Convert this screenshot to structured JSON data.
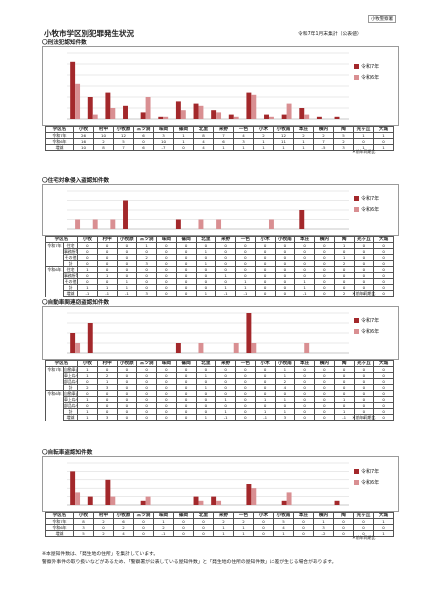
{
  "page": {
    "title": "小牧市学区別犯罪発生状況",
    "date": "令和7年1月末集計（公表値）",
    "badge": "小牧警察署",
    "source": "＊前年同期比",
    "footnotes": [
      "※本屋知件数は、「発生地の住所」を集計しています。",
      "警察外事件の取り扱いなどがあるため、「警察署が公表している屋知件数」と「発生地の住所の屋知件数」に差が生じる場合があります。"
    ]
  },
  "legend": {
    "r7": "令和7年",
    "r6": "令和6年",
    "c7": "#a3282b",
    "c6": "#d98f92"
  },
  "districts": [
    "小牧",
    "村中",
    "小牧原",
    "三ツ渕",
    "味岡",
    "篠岡",
    "北里",
    "米野",
    "一色",
    "小木",
    "小牧南",
    "本庄",
    "横内",
    "陶",
    "光ヶ丘",
    "大城"
  ],
  "sections": [
    {
      "title": "〇刑法犯認知件数",
      "chart_data": {
        "type": "bar",
        "categories": [
          "小牧",
          "村中",
          "小牧原",
          "三ツ渕",
          "味岡",
          "篠岡",
          "北里",
          "米野",
          "一色",
          "小木",
          "小牧南",
          "本庄",
          "横内",
          "陶",
          "光ヶ丘",
          "大城"
        ],
        "ylim": [
          0,
          30
        ],
        "series": [
          {
            "name": "令和7年",
            "values": [
              26,
              10,
              12,
              6,
              3,
              1,
              8,
              7,
              4,
              2,
              12,
              2,
              2,
              5,
              1,
              1
            ]
          },
          {
            "name": "令和6年",
            "values": [
              16,
              2,
              5,
              0,
              10,
              1,
              4,
              6,
              3,
              1,
              11,
              1,
              7,
              2,
              0,
              0
            ]
          }
        ]
      },
      "table": {
        "rows": [
          {
            "label": "学区名",
            "cells": [
              "小牧",
              "村中",
              "小牧原",
              "三ツ渕",
              "味岡",
              "篠岡",
              "北里",
              "米野",
              "一色",
              "小木",
              "小牧南",
              "本庄",
              "横内",
              "陶",
              "光ヶ丘",
              "大城"
            ],
            "header": true
          },
          {
            "label": "令和7年",
            "cells": [
              "26",
              "10",
              "12",
              "6",
              "3",
              "1",
              "8",
              "7",
              "4",
              "2",
              "12",
              "2",
              "2",
              "5",
              "1",
              "1"
            ]
          },
          {
            "label": "令和6年",
            "cells": [
              "16",
              "2",
              "5",
              "0",
              "10",
              "1",
              "4",
              "6",
              "3",
              "1",
              "11",
              "1",
              "7",
              "2",
              "0",
              "0"
            ]
          },
          {
            "label": "増減",
            "cells": [
              "10",
              "8",
              "7",
              "6",
              "-7",
              "0",
              "4",
              "1",
              "1",
              "1",
              "1",
              "1",
              "-5",
              "3",
              "1",
              "1"
            ]
          }
        ]
      }
    },
    {
      "title": "〇住宅対象侵入盗認知件数",
      "chart_data": {
        "type": "bar",
        "categories": [
          "小牧",
          "村中",
          "小牧原",
          "三ツ渕",
          "味岡",
          "篠岡",
          "北里",
          "米野",
          "一色",
          "小木",
          "小牧南",
          "本庄",
          "横内",
          "陶",
          "光ヶ丘",
          "大城"
        ],
        "ylim": [
          0,
          4
        ],
        "series": [
          {
            "name": "令和7年",
            "values": [
              0,
              0,
              0,
              3,
              0,
              0,
              1,
              0,
              0,
              0,
              0,
              0,
              0,
              2,
              0,
              0
            ]
          },
          {
            "name": "令和6年",
            "values": [
              1,
              1,
              1,
              0,
              0,
              0,
              0,
              1,
              1,
              0,
              0,
              1,
              0,
              0,
              0,
              0
            ]
          }
        ]
      },
      "table": {
        "rows": [
          {
            "label": "学区名",
            "cells": [
              "小牧",
              "村中",
              "小牧原",
              "三ツ渕",
              "味岡",
              "篠岡",
              "北里",
              "米野",
              "一色",
              "小木",
              "小牧南",
              "本庄",
              "横内",
              "陶",
              "光ヶ丘",
              "大城"
            ],
            "header": true
          },
          {
            "group": "令和7年",
            "label": "住宅",
            "cells": [
              "0",
              "0",
              "0",
              "1",
              "0",
              "0",
              "0",
              "0",
              "0",
              "0",
              "0",
              "0",
              "0",
              "1",
              "0",
              "0"
            ]
          },
          {
            "group": "",
            "label": "事務所等",
            "cells": [
              "0",
              "0",
              "0",
              "0",
              "0",
              "0",
              "1",
              "0",
              "0",
              "0",
              "0",
              "0",
              "0",
              "0",
              "0",
              "0"
            ]
          },
          {
            "group": "",
            "label": "その他",
            "cells": [
              "0",
              "0",
              "0",
              "2",
              "0",
              "0",
              "0",
              "0",
              "0",
              "0",
              "0",
              "0",
              "0",
              "1",
              "0",
              "0"
            ]
          },
          {
            "group": "",
            "label": "計",
            "cells": [
              "0",
              "0",
              "0",
              "3",
              "0",
              "0",
              "1",
              "0",
              "0",
              "0",
              "0",
              "0",
              "0",
              "2",
              "0",
              "0"
            ]
          },
          {
            "group": "令和6年",
            "label": "住宅",
            "cells": [
              "1",
              "0",
              "0",
              "0",
              "0",
              "0",
              "0",
              "0",
              "0",
              "0",
              "0",
              "0",
              "0",
              "0",
              "0",
              "0"
            ]
          },
          {
            "group": "",
            "label": "事務所等",
            "cells": [
              "0",
              "1",
              "0",
              "0",
              "0",
              "0",
              "0",
              "1",
              "0",
              "0",
              "0",
              "0",
              "0",
              "0",
              "0",
              "0"
            ]
          },
          {
            "group": "",
            "label": "その他",
            "cells": [
              "0",
              "0",
              "1",
              "0",
              "0",
              "0",
              "0",
              "0",
              "1",
              "0",
              "0",
              "1",
              "0",
              "0",
              "0",
              "0"
            ]
          },
          {
            "group": "",
            "label": "計",
            "cells": [
              "1",
              "1",
              "1",
              "0",
              "0",
              "0",
              "0",
              "1",
              "1",
              "0",
              "0",
              "1",
              "0",
              "0",
              "0",
              "0"
            ]
          },
          {
            "group": "",
            "label": "増減",
            "cells": [
              "-1",
              "-1",
              "-1",
              "3",
              "0",
              "0",
              "1",
              "-1",
              "-1",
              "0",
              "0",
              "-1",
              "0",
              "2",
              "0",
              "0"
            ]
          }
        ]
      }
    },
    {
      "title": "〇自動車関連窃盗認知件数",
      "chart_data": {
        "type": "bar",
        "categories": [
          "小牧",
          "村中",
          "小牧原",
          "三ツ渕",
          "味岡",
          "篠岡",
          "北里",
          "米野",
          "一色",
          "小木",
          "小牧南",
          "本庄",
          "横内",
          "陶",
          "光ヶ丘",
          "大城"
        ],
        "ylim": [
          0,
          4
        ],
        "series": [
          {
            "name": "令和7年",
            "values": [
              2,
              3,
              0,
              0,
              0,
              0,
              1,
              0,
              0,
              0,
              4,
              0,
              0,
              0,
              0,
              0
            ]
          },
          {
            "name": "令和6年",
            "values": [
              1,
              0,
              0,
              0,
              0,
              0,
              0,
              1,
              0,
              1,
              1,
              0,
              0,
              1,
              0,
              0
            ]
          }
        ]
      },
      "table": {
        "rows": [
          {
            "label": "学区名",
            "cells": [
              "小牧",
              "村中",
              "小牧原",
              "三ツ渕",
              "味岡",
              "篠岡",
              "北里",
              "米野",
              "一色",
              "小木",
              "小牧南",
              "本庄",
              "横内",
              "陶",
              "光ヶ丘",
              "大城"
            ],
            "header": true
          },
          {
            "group": "令和7年",
            "label": "自動車盗",
            "cells": [
              "1",
              "0",
              "0",
              "0",
              "0",
              "0",
              "0",
              "0",
              "0",
              "0",
              "1",
              "0",
              "0",
              "0",
              "0",
              "0"
            ]
          },
          {
            "group": "",
            "label": "車上ねらい",
            "cells": [
              "1",
              "2",
              "0",
              "0",
              "0",
              "0",
              "1",
              "0",
              "0",
              "0",
              "1",
              "0",
              "0",
              "0",
              "0",
              "0"
            ]
          },
          {
            "group": "",
            "label": "部品ねらい",
            "cells": [
              "0",
              "1",
              "0",
              "0",
              "0",
              "0",
              "0",
              "0",
              "0",
              "0",
              "2",
              "0",
              "0",
              "0",
              "0",
              "0"
            ]
          },
          {
            "group": "",
            "label": "計",
            "cells": [
              "2",
              "3",
              "0",
              "0",
              "0",
              "0",
              "1",
              "0",
              "0",
              "0",
              "4",
              "0",
              "0",
              "0",
              "0",
              "0"
            ]
          },
          {
            "group": "令和6年",
            "label": "自動車盗",
            "cells": [
              "0",
              "0",
              "0",
              "0",
              "0",
              "0",
              "0",
              "0",
              "0",
              "0",
              "0",
              "0",
              "0",
              "0",
              "0",
              "0"
            ]
          },
          {
            "group": "",
            "label": "車上ねらい",
            "cells": [
              "1",
              "0",
              "0",
              "0",
              "0",
              "0",
              "0",
              "1",
              "0",
              "1",
              "1",
              "0",
              "0",
              "1",
              "0",
              "0"
            ]
          },
          {
            "group": "",
            "label": "部品ねらい",
            "cells": [
              "0",
              "0",
              "0",
              "0",
              "0",
              "0",
              "0",
              "0",
              "0",
              "0",
              "0",
              "0",
              "0",
              "0",
              "0",
              "0"
            ]
          },
          {
            "group": "",
            "label": "計",
            "cells": [
              "1",
              "0",
              "0",
              "0",
              "0",
              "0",
              "0",
              "1",
              "0",
              "1",
              "1",
              "0",
              "0",
              "1",
              "0",
              "0"
            ]
          },
          {
            "group": "",
            "label": "増減",
            "cells": [
              "1",
              "3",
              "0",
              "0",
              "0",
              "0",
              "1",
              "-1",
              "0",
              "-1",
              "3",
              "0",
              "0",
              "-1",
              "0",
              "0"
            ]
          }
        ]
      }
    },
    {
      "title": "〇自転車盗認知件数",
      "chart_data": {
        "type": "bar",
        "categories": [
          "小牧",
          "村中",
          "小牧原",
          "三ツ渕",
          "味岡",
          "篠岡",
          "北里",
          "米野",
          "一色",
          "小木",
          "小牧南",
          "本庄",
          "横内",
          "陶",
          "光ヶ丘",
          "大城"
        ],
        "ylim": [
          0,
          10
        ],
        "series": [
          {
            "name": "令和7年",
            "values": [
              8,
              2,
              6,
              0,
              1,
              0,
              0,
              2,
              2,
              0,
              5,
              0,
              1,
              0,
              0,
              1
            ]
          },
          {
            "name": "令和6年",
            "values": [
              3,
              0,
              2,
              0,
              2,
              0,
              0,
              1,
              1,
              0,
              4,
              0,
              3,
              0,
              0,
              0
            ]
          }
        ]
      },
      "table": {
        "rows": [
          {
            "label": "学区名",
            "cells": [
              "小牧",
              "村中",
              "小牧原",
              "三ツ渕",
              "味岡",
              "篠岡",
              "北里",
              "米野",
              "一色",
              "小木",
              "小牧南",
              "本庄",
              "横内",
              "陶",
              "光ヶ丘",
              "大城"
            ],
            "header": true
          },
          {
            "label": "令和7年",
            "cells": [
              "8",
              "2",
              "6",
              "0",
              "1",
              "0",
              "0",
              "2",
              "2",
              "0",
              "5",
              "0",
              "1",
              "0",
              "0",
              "1"
            ]
          },
          {
            "label": "令和6年",
            "cells": [
              "3",
              "0",
              "2",
              "0",
              "2",
              "0",
              "0",
              "1",
              "1",
              "0",
              "4",
              "0",
              "3",
              "0",
              "0",
              "0"
            ]
          },
          {
            "label": "増減",
            "cells": [
              "5",
              "2",
              "4",
              "0",
              "-1",
              "0",
              "0",
              "1",
              "1",
              "0",
              "1",
              "0",
              "-2",
              "0",
              "0",
              "1"
            ]
          }
        ]
      }
    }
  ]
}
